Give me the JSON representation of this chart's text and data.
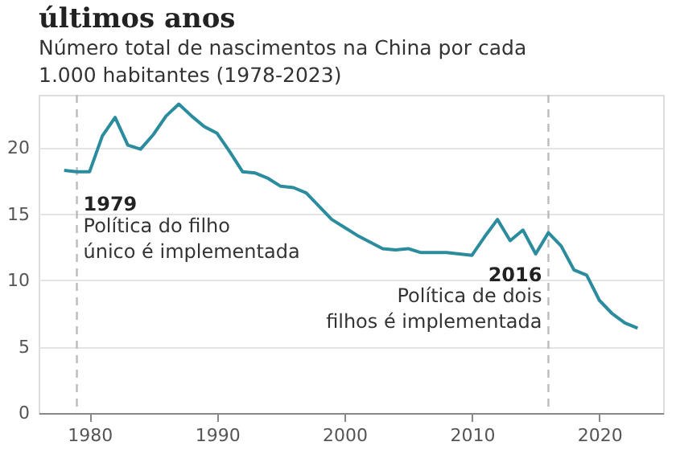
{
  "chart_data": {
    "type": "line",
    "title": "últimos anos",
    "subtitle": "Número total de nascimentos na China por cada\n1.000 habitantes (1978-2023)",
    "x": [
      1978,
      1979,
      1980,
      1981,
      1982,
      1983,
      1984,
      1985,
      1986,
      1987,
      1988,
      1989,
      1990,
      1991,
      1992,
      1993,
      1994,
      1995,
      1996,
      1997,
      1998,
      1999,
      2000,
      2001,
      2002,
      2003,
      2004,
      2005,
      2006,
      2007,
      2008,
      2009,
      2010,
      2011,
      2012,
      2013,
      2014,
      2015,
      2016,
      2017,
      2018,
      2019,
      2020,
      2021,
      2022,
      2023
    ],
    "series": [
      {
        "color": "#2b8c9e",
        "values": [
          18.3,
          18.2,
          18.2,
          20.9,
          22.3,
          20.2,
          19.9,
          21.0,
          22.4,
          23.3,
          22.4,
          21.6,
          21.1,
          19.7,
          18.2,
          18.1,
          17.7,
          17.1,
          17.0,
          16.6,
          15.6,
          14.6,
          14.0,
          13.4,
          12.9,
          12.4,
          12.3,
          12.4,
          12.1,
          12.1,
          12.1,
          12.0,
          11.9,
          13.3,
          14.6,
          13.0,
          13.8,
          12.0,
          13.6,
          12.6,
          10.8,
          10.4,
          8.5,
          7.5,
          6.8,
          6.4
        ]
      }
    ],
    "xlim": [
      1976,
      2025
    ],
    "xticks": [
      1980,
      1990,
      2000,
      2010,
      2020
    ],
    "ylim": [
      0,
      24
    ],
    "yticks": [
      0,
      5,
      10,
      15,
      20
    ],
    "grid": "y",
    "marker": "none",
    "line_style": "solid",
    "ref_lines": [
      {
        "axis": "x",
        "value": 1979,
        "label": "1979",
        "color": "#bbbbbb",
        "line_style": "dashed"
      },
      {
        "axis": "x",
        "value": 2016,
        "label": "2016",
        "color": "#bbbbbb",
        "line_style": "dashed"
      }
    ],
    "annotations": [
      {
        "text": "Política do filho\núnico é implementada",
        "x": 1979,
        "y": 13.3
      },
      {
        "text": "Política de dois\nfilhos é implementada",
        "x": 2016,
        "y": 8.0
      }
    ]
  }
}
